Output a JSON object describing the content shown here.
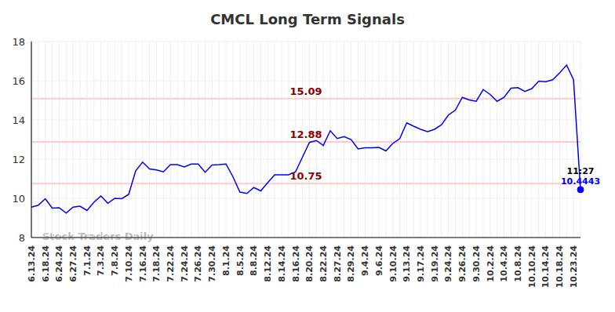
{
  "chart_data": {
    "type": "line",
    "title": "CMCL Long Term Signals",
    "categories": [
      "6.13.24",
      null,
      "6.18.24",
      null,
      "6.24.24",
      null,
      "6.27.24",
      null,
      "7.1.24",
      null,
      "7.3.24",
      null,
      "7.8.24",
      null,
      "7.10.24",
      null,
      "7.16.24",
      null,
      "7.18.24",
      null,
      "7.22.24",
      null,
      "7.24.24",
      null,
      "7.26.24",
      null,
      "7.30.24",
      null,
      "8.1.24",
      null,
      "8.5.24",
      null,
      "8.8.24",
      null,
      "8.12.24",
      null,
      "8.14.24",
      null,
      "8.16.24",
      null,
      "8.20.24",
      null,
      "8.22.24",
      null,
      "8.27.24",
      null,
      "8.29.24",
      null,
      "9.4.24",
      null,
      "9.6.24",
      null,
      "9.10.24",
      null,
      "9.13.24",
      null,
      "9.17.24",
      null,
      "9.19.24",
      null,
      "9.24.24",
      null,
      "9.26.24",
      null,
      "9.30.24",
      null,
      "10.2.24",
      null,
      "10.4.24",
      null,
      "10.8.24",
      null,
      "10.10.24",
      null,
      "10.14.24",
      null,
      "10.18.24",
      null,
      "10.23.24",
      null
    ],
    "values": [
      9.55,
      9.65,
      9.98,
      9.5,
      9.52,
      9.25,
      9.55,
      9.6,
      9.38,
      9.8,
      10.12,
      9.75,
      10.0,
      9.98,
      10.2,
      11.4,
      11.85,
      11.5,
      11.45,
      11.35,
      11.72,
      11.72,
      11.6,
      11.75,
      11.75,
      11.33,
      11.7,
      11.72,
      11.75,
      11.1,
      10.32,
      10.25,
      10.55,
      10.38,
      10.8,
      11.2,
      11.2,
      11.2,
      11.35,
      12.1,
      12.85,
      12.95,
      12.7,
      13.45,
      13.05,
      13.15,
      13.0,
      12.52,
      12.58,
      12.58,
      12.6,
      12.42,
      12.8,
      13.05,
      13.85,
      13.68,
      13.52,
      13.4,
      13.52,
      13.75,
      14.25,
      14.5,
      15.15,
      15.02,
      14.95,
      15.55,
      15.3,
      14.95,
      15.15,
      15.62,
      15.65,
      15.45,
      15.6,
      15.98,
      15.95,
      16.05,
      16.4,
      16.8,
      16.05,
      10.4443
    ],
    "color": "#0000ff",
    "ylim": [
      8,
      18
    ],
    "yticks": [
      8,
      10,
      12,
      14,
      16,
      18
    ],
    "grid": true,
    "reference_lines": [
      {
        "value": 15.09,
        "label": "15.09",
        "color": "#ffcccc"
      },
      {
        "value": 12.88,
        "label": "12.88",
        "color": "#ffcccc"
      },
      {
        "value": 10.75,
        "label": "10.75",
        "color": "#ffcccc"
      }
    ],
    "last_point_time": "11:27",
    "watermark": "Stock Traders Daily"
  }
}
